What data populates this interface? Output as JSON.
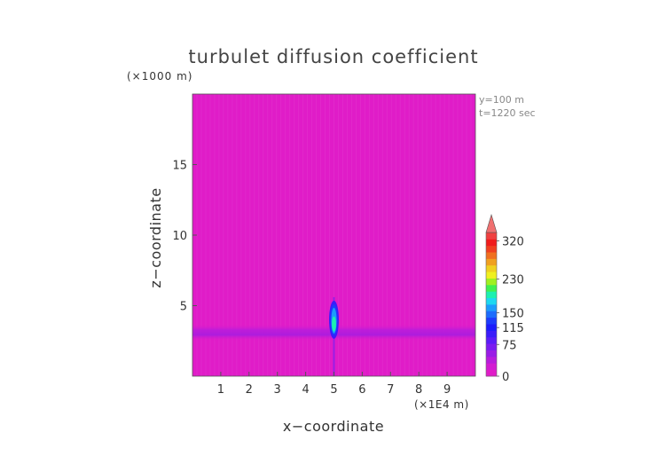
{
  "chart_data": {
    "type": "heatmap",
    "title": "turbulet diffusion coefficient",
    "xlabel": "x−coordinate",
    "ylabel": "z−coordinate",
    "x_unit": "(×1E4 m)",
    "y_unit": "(×1000 m)",
    "annotations": [
      "y=100  m",
      "t=1220 sec"
    ],
    "xlim": [
      0,
      10
    ],
    "ylim": [
      0,
      20
    ],
    "x_ticks": [
      1,
      2,
      3,
      4,
      5,
      6,
      7,
      8,
      9
    ],
    "y_ticks": [
      5,
      10,
      15
    ],
    "grid": false,
    "background_value": 0,
    "features": [
      {
        "kind": "horizontal-band",
        "z_range": [
          2.5,
          3.7
        ],
        "value": 40
      },
      {
        "kind": "vertical-plume",
        "x": 5.0,
        "z_range": [
          2.9,
          5.1
        ],
        "peak_value": 160,
        "peak_z": 3.7
      }
    ],
    "colorbar": {
      "tick_labels": [
        "0",
        "75",
        "115",
        "150",
        "230",
        "320"
      ],
      "tick_values": [
        0,
        75,
        115,
        150,
        230,
        320
      ],
      "max": 340,
      "extend": "max",
      "colors": [
        "#e01cc8",
        "#d21cd2",
        "#b81cdc",
        "#9a1ce6",
        "#7a1cf0",
        "#5a1cf8",
        "#3a1cfa",
        "#1c1cfc",
        "#1c3cfc",
        "#1c6cfc",
        "#1c9cfc",
        "#1cd8f0",
        "#1cf0b0",
        "#40f050",
        "#a0f020",
        "#f0f020",
        "#f0d020",
        "#f0a020",
        "#f07020",
        "#f04020",
        "#f01c1c",
        "#f04040"
      ],
      "arrow_color": "#f07070"
    }
  }
}
